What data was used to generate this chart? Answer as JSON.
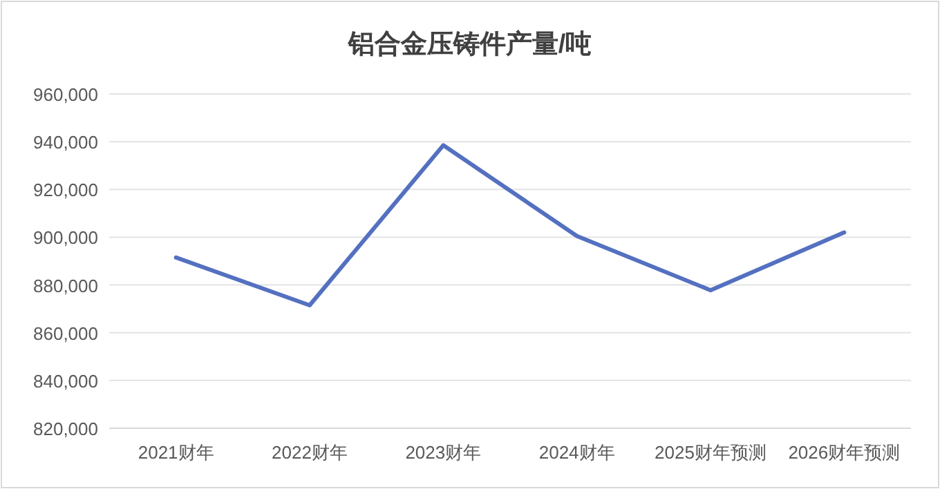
{
  "chart_data": {
    "type": "line",
    "title": "铝合金压铸件产量/吨",
    "categories": [
      "2021财年",
      "2022财年",
      "2023财年",
      "2024财年",
      "2025财年预测",
      "2026财年预测"
    ],
    "series": [
      {
        "color": "#5470c0",
        "values": [
          891500,
          871500,
          938500,
          900500,
          877800,
          902000
        ]
      }
    ],
    "ylim": [
      820000,
      960000
    ],
    "yticks": [
      {
        "value": 820000,
        "label": "820,000"
      },
      {
        "value": 840000,
        "label": "840,000"
      },
      {
        "value": 860000,
        "label": "860,000"
      },
      {
        "value": 880000,
        "label": "880,000"
      },
      {
        "value": 900000,
        "label": "900,000"
      },
      {
        "value": 920000,
        "label": "920,000"
      },
      {
        "value": 940000,
        "label": "940,000"
      },
      {
        "value": 960000,
        "label": "960,000"
      }
    ],
    "grid": "y",
    "marker": "none",
    "line_style": "solid"
  }
}
